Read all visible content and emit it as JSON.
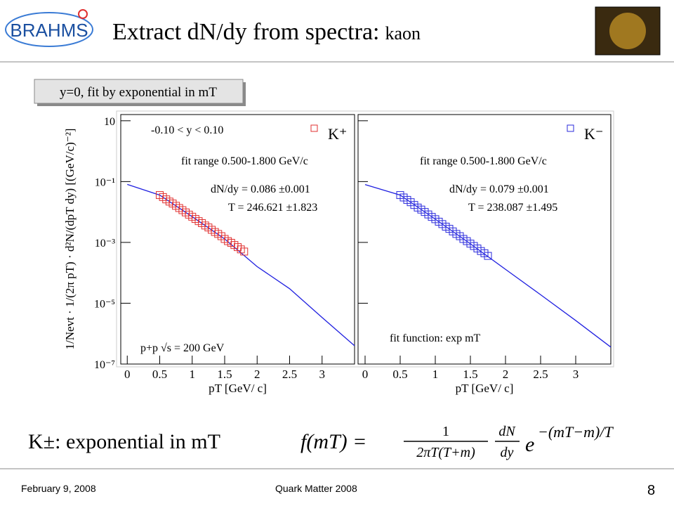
{
  "header": {
    "logo": "BRAHMS",
    "title": "Extract dN/dy from spectra:",
    "title_suffix": "kaon"
  },
  "subtitle_box": "y=0, fit by exponential in mT",
  "y_label": "1/Nevt · 1/(2π pT) · d²N/(dpT dy) [(GeV/c)⁻²]",
  "chart_data": [
    {
      "type": "scatter",
      "log_y": true,
      "xlim": [
        -0.1,
        3.5
      ],
      "ylim": [
        1e-07,
        16
      ],
      "xticks": [
        0,
        0.5,
        1,
        1.5,
        2,
        2.5,
        3
      ],
      "yticks": [
        10,
        {
          "value": 0.1,
          "label": "10⁻¹"
        },
        {
          "value": 0.001,
          "label": "10⁻³"
        },
        {
          "value": 1e-05,
          "label": "10⁻⁵"
        },
        {
          "value": 1e-07,
          "label": "10⁻⁷"
        }
      ],
      "x_label": "pT [GeV/ c]",
      "annotations": [
        "-0.10 < y < 0.10",
        "fit range 0.500-1.800 GeV/c",
        "dN/dy = 0.086 ±0.001",
        "T = 246.621 ±1.823",
        "p+p √s = 200 GeV"
      ],
      "series": [
        {
          "name": "K⁺",
          "color": "#e03030",
          "x": [
            0.5,
            0.55,
            0.6,
            0.65,
            0.7,
            0.75,
            0.8,
            0.85,
            0.9,
            0.95,
            1.0,
            1.05,
            1.1,
            1.15,
            1.2,
            1.25,
            1.3,
            1.35,
            1.4,
            1.45,
            1.5,
            1.55,
            1.6,
            1.65,
            1.7,
            1.75,
            1.8
          ],
          "values": [
            0.036,
            0.031,
            0.026,
            0.022,
            0.019,
            0.016,
            0.0135,
            0.0115,
            0.0097,
            0.0082,
            0.007,
            0.0059,
            0.005,
            0.0043,
            0.0036,
            0.0031,
            0.0026,
            0.0022,
            0.0019,
            0.0016,
            0.0013,
            0.0011,
            0.00097,
            0.00082,
            0.0007,
            0.00059,
            0.0005
          ]
        }
      ],
      "fit_curve": {
        "color": "#2020e0",
        "x": [
          0,
          0.5,
          1,
          1.5,
          2,
          2.5,
          3,
          3.5
        ],
        "values": [
          0.081,
          0.036,
          0.007,
          0.0013,
          0.00016,
          3e-05,
          3.4e-06,
          4e-07
        ]
      }
    },
    {
      "type": "scatter",
      "log_y": true,
      "xlim": [
        -0.1,
        3.5
      ],
      "ylim": [
        1e-07,
        16
      ],
      "xticks": [
        0,
        0.5,
        1,
        1.5,
        2,
        2.5,
        3
      ],
      "x_label": "pT [GeV/ c]",
      "annotations": [
        "fit range 0.500-1.800 GeV/c",
        "dN/dy = 0.079 ±0.001",
        "T = 238.087 ±1.495",
        "fit function: exp mT"
      ],
      "series": [
        {
          "name": "K⁻",
          "color": "#2a2adb",
          "x": [
            0.5,
            0.55,
            0.6,
            0.65,
            0.7,
            0.75,
            0.8,
            0.85,
            0.9,
            0.95,
            1.0,
            1.05,
            1.1,
            1.15,
            1.2,
            1.25,
            1.3,
            1.35,
            1.4,
            1.45,
            1.5,
            1.55,
            1.6,
            1.65,
            1.7,
            1.75
          ],
          "values": [
            0.036,
            0.03,
            0.025,
            0.021,
            0.017,
            0.014,
            0.012,
            0.01,
            0.0083,
            0.0069,
            0.0058,
            0.0048,
            0.004,
            0.0033,
            0.0028,
            0.0023,
            0.0019,
            0.0016,
            0.0013,
            0.0011,
            0.00091,
            0.00076,
            0.00063,
            0.00052,
            0.00044,
            0.00036
          ]
        }
      ],
      "fit_curve": {
        "color": "#2020e0",
        "x": [
          0,
          0.5,
          1,
          1.5,
          2,
          2.5,
          3,
          3.5
        ],
        "values": [
          0.08,
          0.036,
          0.0058,
          0.0009,
          0.00013,
          1.9e-05,
          2.7e-06,
          3.6e-07
        ]
      }
    }
  ],
  "formula": {
    "prefix": "K±: exponential in mT",
    "lhs": "f(mT) =",
    "numerator": "1",
    "denominator": "2πT(T+m)",
    "dn": "dN",
    "dy": "dy",
    "base": "e",
    "exponent": "−(mT−m)/T"
  },
  "footer": {
    "date": "February 9, 2008",
    "conference": "Quark Matter 2008",
    "page": "8"
  }
}
